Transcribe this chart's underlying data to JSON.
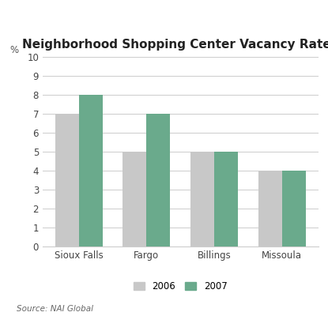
{
  "title": "Neighborhood Shopping Center Vacancy Rates",
  "categories": [
    "Sioux Falls",
    "Fargo",
    "Billings",
    "Missoula"
  ],
  "values_2006": [
    7,
    5,
    5,
    4
  ],
  "values_2007": [
    8,
    7,
    5,
    4
  ],
  "color_2006": "#c8c8c8",
  "color_2007": "#6aaa8c",
  "ylim": [
    0,
    10
  ],
  "yticks": [
    0,
    1,
    2,
    3,
    4,
    5,
    6,
    7,
    8,
    9,
    10
  ],
  "ylabel_symbol": "%",
  "legend_labels": [
    "2006",
    "2007"
  ],
  "source_text": "Source: NAI Global",
  "bar_width": 0.35,
  "title_fontsize": 11,
  "tick_fontsize": 8.5,
  "legend_fontsize": 8.5,
  "source_fontsize": 7.5,
  "background_color": "#ffffff",
  "grid_color": "#cccccc"
}
